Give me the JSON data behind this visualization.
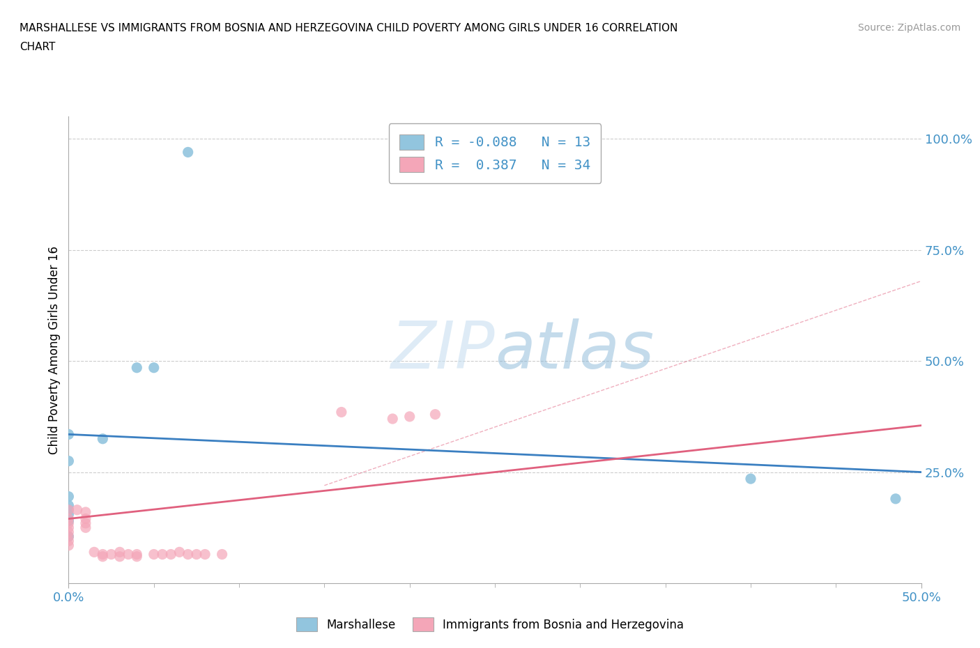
{
  "title_line1": "MARSHALLESE VS IMMIGRANTS FROM BOSNIA AND HERZEGOVINA CHILD POVERTY AMONG GIRLS UNDER 16 CORRELATION",
  "title_line2": "CHART",
  "source_text": "Source: ZipAtlas.com",
  "ylabel": "Child Poverty Among Girls Under 16",
  "xlim": [
    0.0,
    0.5
  ],
  "ylim": [
    0.0,
    1.05
  ],
  "y_tick_values": [
    0.25,
    0.5,
    0.75,
    1.0
  ],
  "watermark_zip": "ZIP",
  "watermark_atlas": "atlas",
  "blue_color": "#92c5de",
  "pink_color": "#f4a6b8",
  "blue_line_color": "#3a7fc1",
  "pink_line_color": "#e0607e",
  "blue_scatter": [
    [
      0.0,
      0.335
    ],
    [
      0.0,
      0.275
    ],
    [
      0.0,
      0.195
    ],
    [
      0.0,
      0.175
    ],
    [
      0.0,
      0.165
    ],
    [
      0.0,
      0.155
    ],
    [
      0.0,
      0.14
    ],
    [
      0.0,
      0.105
    ],
    [
      0.02,
      0.325
    ],
    [
      0.04,
      0.485
    ],
    [
      0.05,
      0.485
    ],
    [
      0.4,
      0.235
    ],
    [
      0.485,
      0.19
    ]
  ],
  "blue_special": [
    0.07,
    0.97
  ],
  "pink_scatter": [
    [
      0.0,
      0.165
    ],
    [
      0.0,
      0.145
    ],
    [
      0.0,
      0.135
    ],
    [
      0.0,
      0.125
    ],
    [
      0.0,
      0.115
    ],
    [
      0.0,
      0.105
    ],
    [
      0.0,
      0.095
    ],
    [
      0.0,
      0.085
    ],
    [
      0.005,
      0.165
    ],
    [
      0.01,
      0.16
    ],
    [
      0.01,
      0.145
    ],
    [
      0.01,
      0.135
    ],
    [
      0.01,
      0.125
    ],
    [
      0.015,
      0.07
    ],
    [
      0.02,
      0.065
    ],
    [
      0.02,
      0.06
    ],
    [
      0.025,
      0.065
    ],
    [
      0.03,
      0.07
    ],
    [
      0.03,
      0.06
    ],
    [
      0.035,
      0.065
    ],
    [
      0.04,
      0.065
    ],
    [
      0.04,
      0.06
    ],
    [
      0.05,
      0.065
    ],
    [
      0.055,
      0.065
    ],
    [
      0.06,
      0.065
    ],
    [
      0.065,
      0.07
    ],
    [
      0.07,
      0.065
    ],
    [
      0.075,
      0.065
    ],
    [
      0.08,
      0.065
    ],
    [
      0.09,
      0.065
    ],
    [
      0.16,
      0.385
    ],
    [
      0.19,
      0.37
    ],
    [
      0.2,
      0.375
    ],
    [
      0.215,
      0.38
    ]
  ],
  "blue_line_x": [
    0.0,
    0.5
  ],
  "blue_line_y": [
    0.335,
    0.25
  ],
  "pink_line_x": [
    0.0,
    0.5
  ],
  "pink_line_y": [
    0.145,
    0.355
  ]
}
